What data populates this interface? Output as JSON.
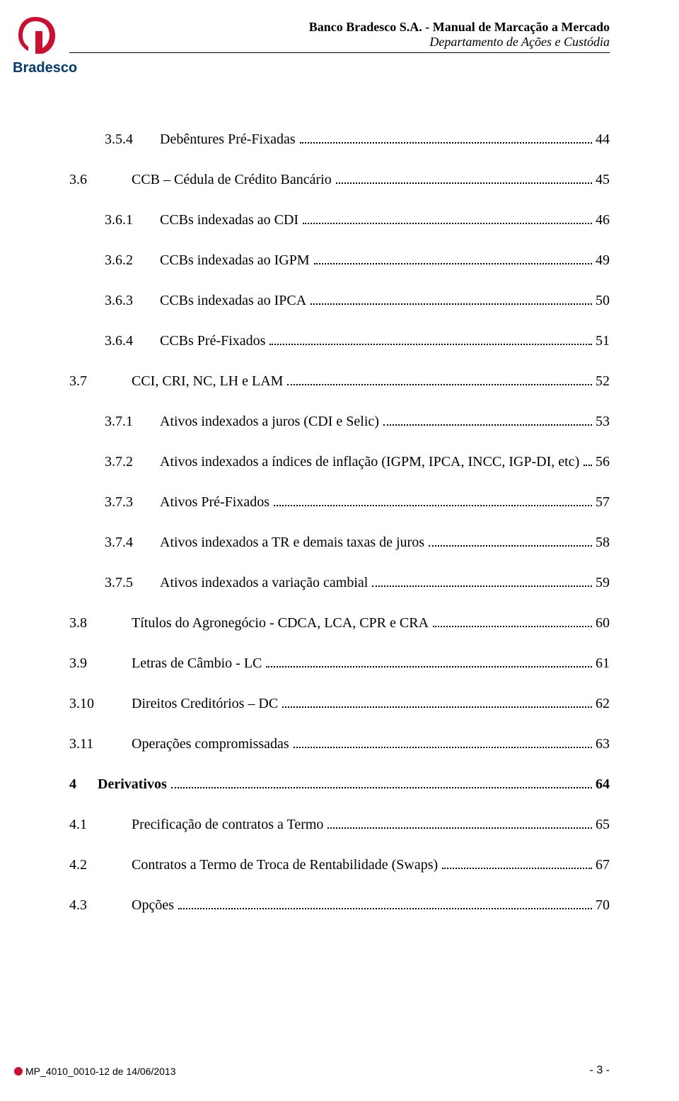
{
  "logo": {
    "brand_text": "Bradesco",
    "primary_color": "#cc0e2f",
    "text_color": "#003a70"
  },
  "header": {
    "title": "Banco Bradesco S.A. - Manual de Marcação a Mercado",
    "subtitle": "Departamento de Ações e Custódia"
  },
  "toc": [
    {
      "level": 2,
      "num": "3.5.4",
      "text": "Debêntures Pré-Fixadas",
      "page": "44"
    },
    {
      "level": 1,
      "num": "3.6",
      "text": "CCB – Cédula de Crédito Bancário",
      "page": "45"
    },
    {
      "level": 2,
      "num": "3.6.1",
      "text": "CCBs indexadas ao CDI",
      "page": "46"
    },
    {
      "level": 2,
      "num": "3.6.2",
      "text": "CCBs indexadas ao IGPM",
      "page": "49"
    },
    {
      "level": 2,
      "num": "3.6.3",
      "text": "CCBs indexadas ao IPCA",
      "page": "50"
    },
    {
      "level": 2,
      "num": "3.6.4",
      "text": "CCBs Pré-Fixados",
      "page": "51"
    },
    {
      "level": 1,
      "num": "3.7",
      "text": "CCI, CRI, NC, LH e LAM",
      "page": "52"
    },
    {
      "level": 2,
      "num": "3.7.1",
      "text": "Ativos indexados a juros (CDI e Selic)",
      "page": "53"
    },
    {
      "level": 2,
      "num": "3.7.2",
      "text": "Ativos indexados a índices de inflação (IGPM, IPCA, INCC, IGP-DI, etc)",
      "page": "56"
    },
    {
      "level": 2,
      "num": "3.7.3",
      "text": "Ativos Pré-Fixados",
      "page": "57"
    },
    {
      "level": 2,
      "num": "3.7.4",
      "text": "Ativos indexados a TR e demais taxas de juros",
      "page": "58"
    },
    {
      "level": 2,
      "num": "3.7.5",
      "text": "Ativos indexados a variação cambial",
      "page": "59"
    },
    {
      "level": 1,
      "num": "3.8",
      "text": "Títulos do Agronegócio - CDCA, LCA, CPR e CRA",
      "page": "60"
    },
    {
      "level": 1,
      "num": "3.9",
      "text": "Letras de Câmbio - LC",
      "page": "61"
    },
    {
      "level": 1,
      "num": "3.10",
      "text": "Direitos Creditórios – DC",
      "page": "62"
    },
    {
      "level": 1,
      "num": "3.11",
      "text": "Operações compromissadas",
      "page": "63"
    },
    {
      "level": 0,
      "num": "4",
      "text": "Derivativos",
      "page": "64",
      "bold": true
    },
    {
      "level": 1,
      "num": "4.1",
      "text": "Precificação de contratos a Termo",
      "page": "65"
    },
    {
      "level": 1,
      "num": "4.2",
      "text": "Contratos a Termo de Troca de Rentabilidade (Swaps)",
      "page": "67"
    },
    {
      "level": 1,
      "num": "4.3",
      "text": "Opções",
      "page": "70"
    }
  ],
  "footer": {
    "doc_ref": "MP_4010_0010-12 de 14/06/2013",
    "page_label": "- 3 -"
  }
}
